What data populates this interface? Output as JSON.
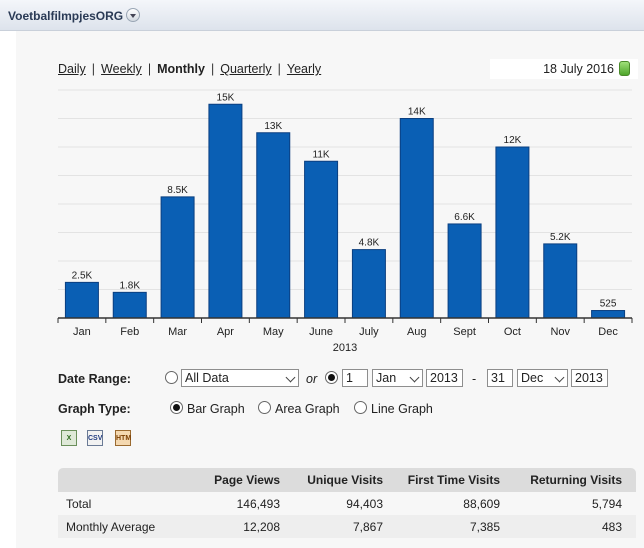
{
  "header": {
    "site_name": "VoetbalfilmpjesORG"
  },
  "period_tabs": [
    {
      "label": "Daily",
      "active": false
    },
    {
      "label": "Weekly",
      "active": false
    },
    {
      "label": "Monthly",
      "active": true
    },
    {
      "label": "Quarterly",
      "active": false
    },
    {
      "label": "Yearly",
      "active": false
    }
  ],
  "current_date": "18 July 2016",
  "chart_data": {
    "type": "bar",
    "categories": [
      "Jan",
      "Feb",
      "Mar",
      "Apr",
      "May",
      "June",
      "July",
      "Aug",
      "Sept",
      "Oct",
      "Nov",
      "Dec"
    ],
    "values": [
      2500,
      1800,
      8500,
      15000,
      13000,
      11000,
      4800,
      14000,
      6600,
      12000,
      5200,
      525
    ],
    "value_labels": [
      "2.5K",
      "1.8K",
      "8.5K",
      "15K",
      "13K",
      "11K",
      "4.8K",
      "14K",
      "6.6K",
      "12K",
      "5.2K",
      "525"
    ],
    "xlabel": "2013",
    "ylim": [
      0,
      16000
    ],
    "grid": true,
    "bar_color": "#0a5fb4"
  },
  "controls": {
    "date_range_label": "Date Range:",
    "range_option_all": "All Data",
    "or_label": "or",
    "from_day": "1",
    "from_month": "Jan",
    "from_year": "2013",
    "range_dash": "-",
    "to_day": "31",
    "to_month": "Dec",
    "to_year": "2013",
    "graph_type_label": "Graph Type:",
    "graph_types": [
      "Bar Graph",
      "Area Graph",
      "Line Graph"
    ],
    "selected_graph_type": "Bar Graph"
  },
  "export_icons": [
    "excel-export-icon",
    "csv-export-icon",
    "html-export-icon"
  ],
  "export_icon_text": {
    "xls": "X",
    "csv": "CSV",
    "html": "HTM"
  },
  "table": {
    "headers": [
      "",
      "Page Views",
      "Unique Visits",
      "First Time Visits",
      "Returning Visits"
    ],
    "rows": [
      [
        "Total",
        "146,493",
        "94,403",
        "88,609",
        "5,794"
      ],
      [
        "Monthly Average",
        "12,208",
        "7,867",
        "7,385",
        "483"
      ]
    ]
  }
}
